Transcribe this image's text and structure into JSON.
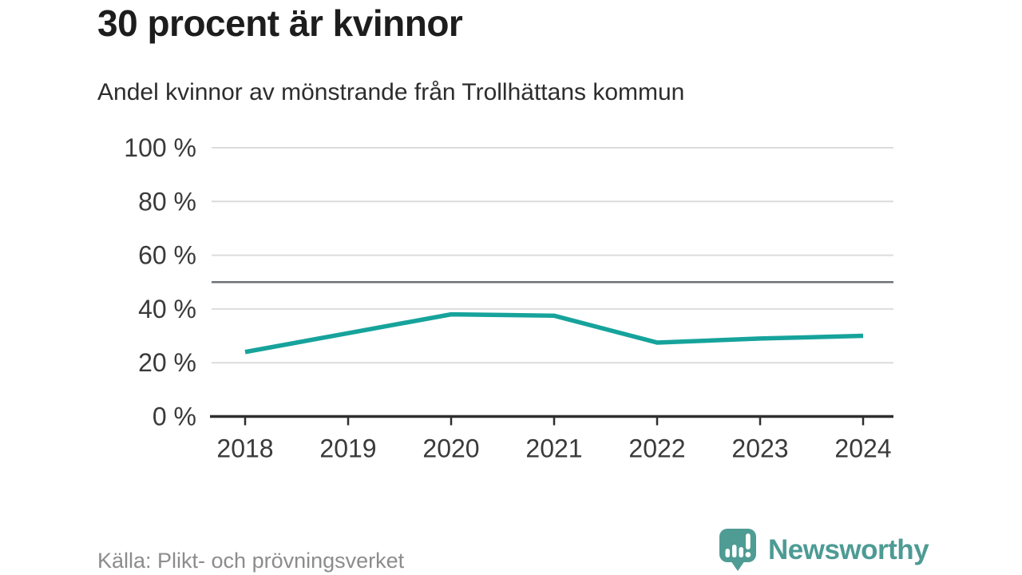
{
  "header": {
    "title": "30 procent är kvinnor",
    "subtitle": "Andel kvinnor av mönstrande från Trollhättans kommun"
  },
  "footer": {
    "source": "Källa: Plikt- och prövningsverket",
    "brand": "Newsworthy"
  },
  "colors": {
    "line": "#16a39b",
    "reference": "#6e7277",
    "grid": "#dcdcdc",
    "axis": "#2e2e2e",
    "tick_text": "#3a3a3a",
    "source_text": "#8c8c8c",
    "brand": "#4d9b94"
  },
  "chart_data": {
    "type": "line",
    "title": "30 procent är kvinnor",
    "subtitle": "Andel kvinnor av mönstrande från Trollhättans kommun",
    "source": "Källa: Plikt- och prövningsverket",
    "x": [
      "2018",
      "2019",
      "2020",
      "2021",
      "2022",
      "2023",
      "2024"
    ],
    "series": [
      {
        "name": "Andel kvinnor av mönstrande",
        "values": [
          24,
          31,
          38,
          37.5,
          27.5,
          29,
          30
        ]
      }
    ],
    "unit": "%",
    "ylim": [
      0,
      100
    ],
    "y_ticks": [
      0,
      20,
      40,
      60,
      80,
      100
    ],
    "y_tick_suffix": " %",
    "reference_line": 50,
    "grid": true,
    "legend_position": "none"
  }
}
